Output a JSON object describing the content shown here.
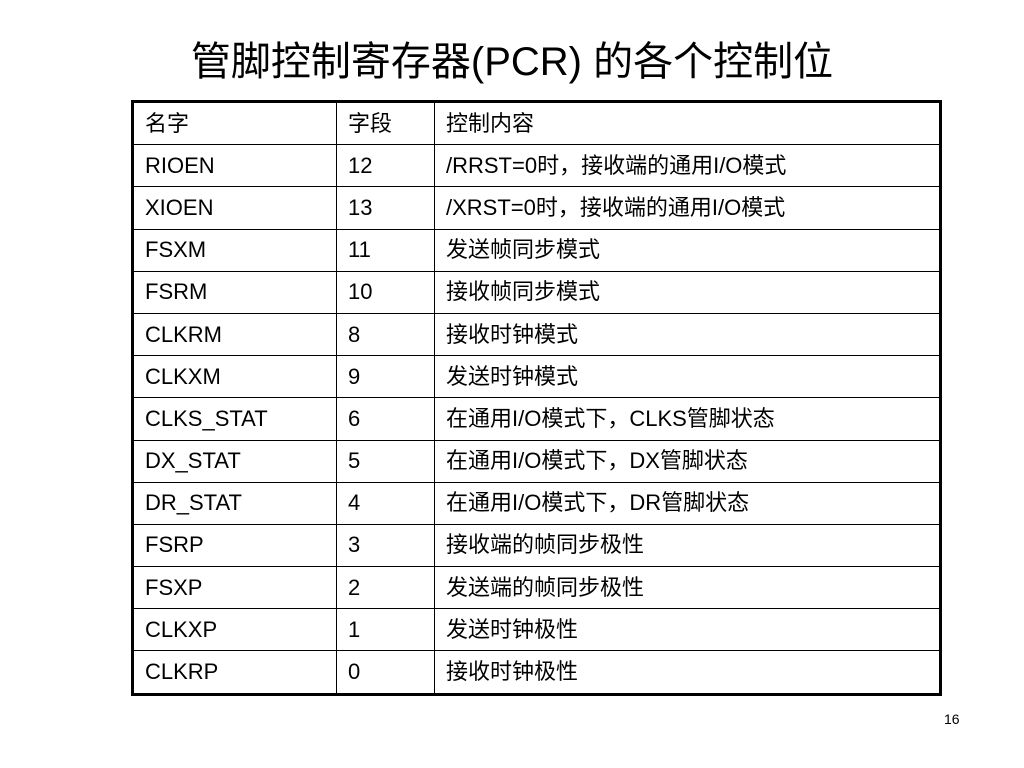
{
  "title": "管脚控制寄存器(PCR) 的各个控制位",
  "table": {
    "headers": [
      "名字",
      "字段",
      "控制内容"
    ],
    "rows": [
      [
        "RIOEN",
        "12",
        "/RRST=0时，接收端的通用I/O模式"
      ],
      [
        "XIOEN",
        "13",
        "/XRST=0时，接收端的通用I/O模式"
      ],
      [
        "FSXM",
        "11",
        "发送帧同步模式"
      ],
      [
        "FSRM",
        "10",
        "接收帧同步模式"
      ],
      [
        "CLKRM",
        "8",
        "接收时钟模式"
      ],
      [
        "CLKXM",
        "9",
        "发送时钟模式"
      ],
      [
        "CLKS_STAT",
        "6",
        "在通用I/O模式下，CLKS管脚状态"
      ],
      [
        "DX_STAT",
        "5",
        "在通用I/O模式下，DX管脚状态"
      ],
      [
        "DR_STAT",
        "4",
        "在通用I/O模式下，DR管脚状态"
      ],
      [
        "FSRP",
        "3",
        "接收端的帧同步极性"
      ],
      [
        "FSXP",
        "2",
        "发送端的帧同步极性"
      ],
      [
        "CLKXP",
        "1",
        "发送时钟极性"
      ],
      [
        "CLKRP",
        "0",
        "接收时钟极性"
      ]
    ]
  },
  "page_number": "16"
}
